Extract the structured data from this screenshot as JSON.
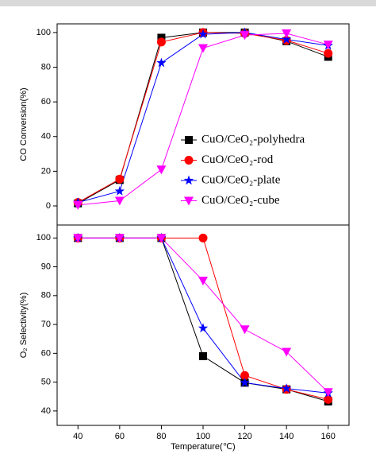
{
  "chart_data": [
    {
      "type": "line",
      "ylabel": "CO Conversion(%)",
      "x": [
        40,
        60,
        80,
        100,
        120,
        140,
        160
      ],
      "xlim": [
        30,
        170
      ],
      "ylim": [
        -11,
        105
      ],
      "yticks": [
        0,
        20,
        40,
        60,
        80,
        100
      ],
      "legend": "lower right",
      "series": [
        {
          "name": "CuO/CeO₂-polyhedra",
          "color": "#000000",
          "marker": "square",
          "values": [
            1.5,
            15,
            97,
            100,
            100,
            95,
            86
          ]
        },
        {
          "name": "CuO/CeO₂-rod",
          "color": "#ff0000",
          "marker": "circle",
          "values": [
            2,
            15.5,
            94.5,
            100,
            99.5,
            95.5,
            88
          ]
        },
        {
          "name": "CuO/CeO₂-plate",
          "color": "#0000ff",
          "marker": "star",
          "values": [
            2,
            8.5,
            82.5,
            99,
            100,
            96,
            92.5
          ]
        },
        {
          "name": "CuO/CeO₂-cube",
          "color": "#ff00ff",
          "marker": "triangle-down",
          "values": [
            0.5,
            3,
            21,
            91,
            98.5,
            99.5,
            93
          ]
        }
      ]
    },
    {
      "type": "line",
      "ylabel": "O₂ Selectivity(%)",
      "xlabel": "Temperature(℃)",
      "x": [
        40,
        60,
        80,
        100,
        120,
        140,
        160
      ],
      "xlim": [
        30,
        170
      ],
      "xticks": [
        40,
        60,
        80,
        100,
        120,
        140,
        160
      ],
      "ylim": [
        35,
        104.5
      ],
      "yticks": [
        40,
        50,
        60,
        70,
        80,
        90,
        100
      ],
      "series": [
        {
          "color": "#000000",
          "marker": "square",
          "values": [
            100,
            100,
            100,
            59,
            49.8,
            47.5,
            43.3
          ]
        },
        {
          "color": "#ff0000",
          "marker": "circle",
          "values": [
            100,
            100,
            100,
            100,
            52.3,
            47.5,
            44
          ]
        },
        {
          "color": "#0000ff",
          "marker": "star",
          "values": [
            100,
            100,
            100,
            68.7,
            49.8,
            47.8,
            46.2
          ]
        },
        {
          "color": "#ff00ff",
          "marker": "triangle-down",
          "values": [
            100,
            100,
            100,
            85.2,
            68.3,
            60.5,
            46.5
          ]
        }
      ]
    }
  ]
}
